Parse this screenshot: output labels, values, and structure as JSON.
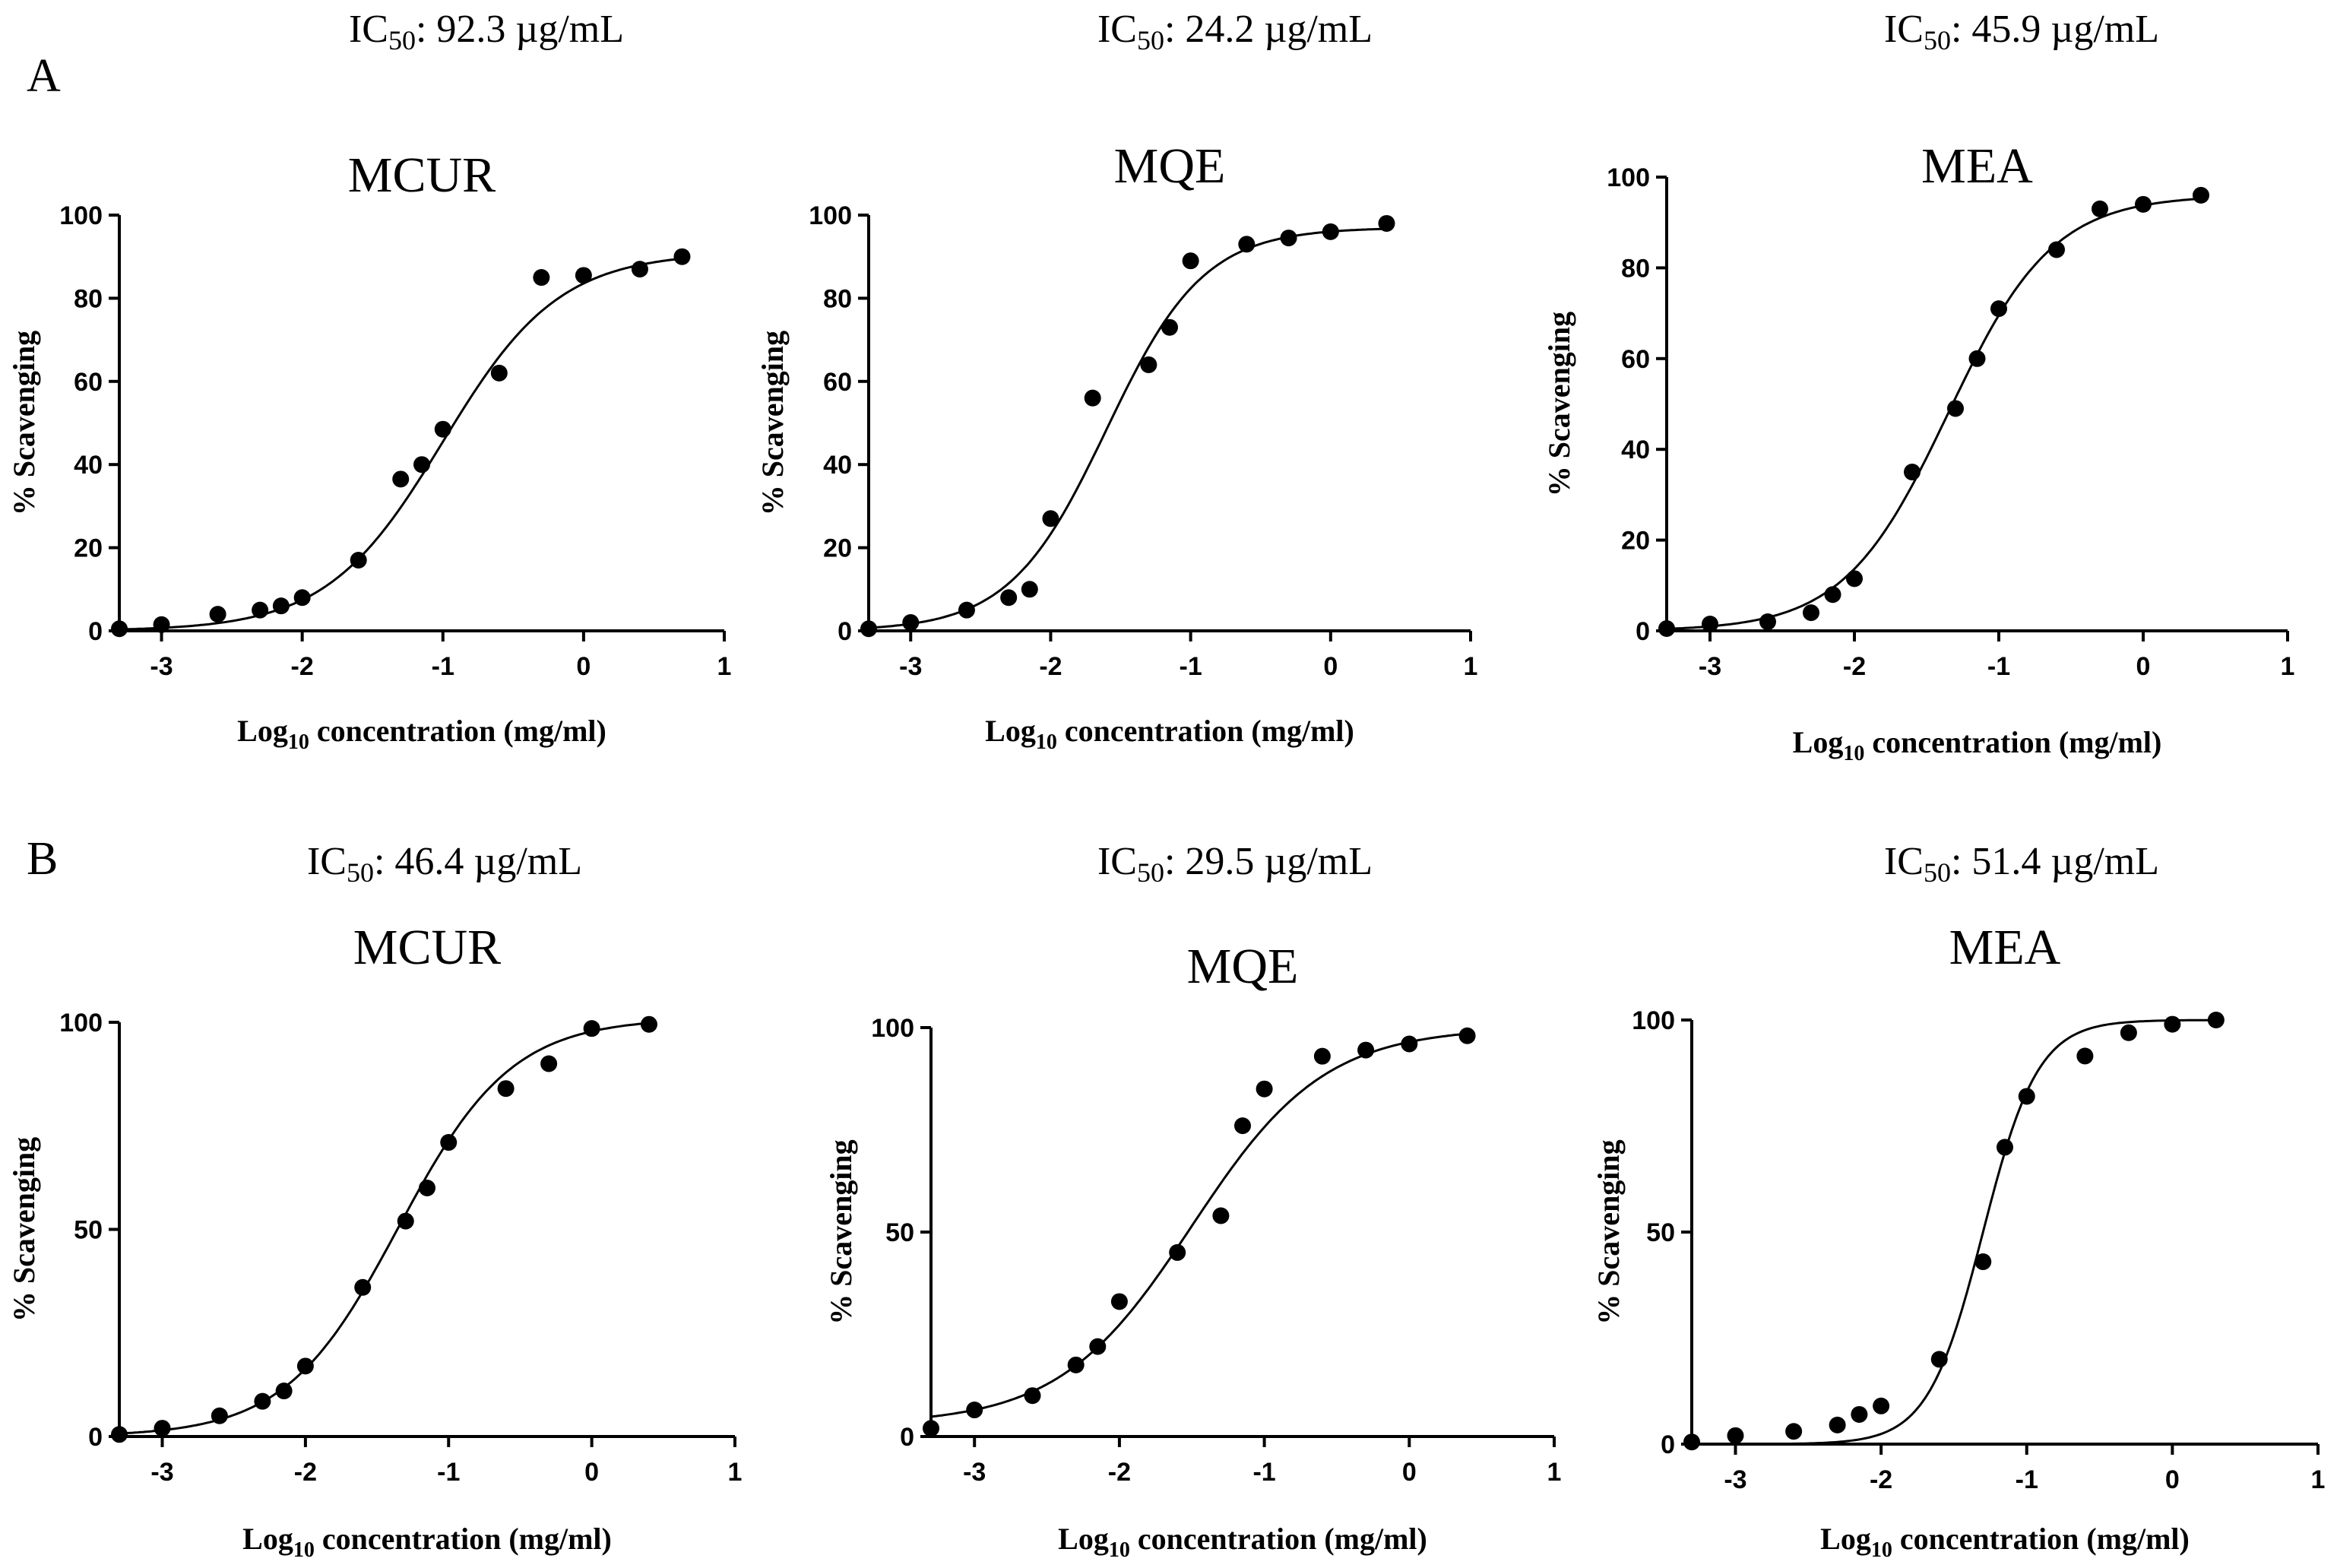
{
  "figure": {
    "panel_labels": [
      "A",
      "B"
    ]
  },
  "chart_data": [
    {
      "type": "scatter",
      "panel": "A",
      "title": "MCUR",
      "ic50_label": "IC",
      "ic50_sub": "50",
      "ic50_value": ": 92.3 µg/mL",
      "xlabel_main": "Log",
      "xlabel_sub": "10",
      "xlabel_rest": " concentration (mg/ml)",
      "ylabel": "% Scavenging",
      "xlim": [
        -3.3,
        1
      ],
      "ylim": [
        0,
        100
      ],
      "xticks": [
        -3,
        -2,
        -1,
        0,
        1
      ],
      "yticks": [
        0,
        20,
        40,
        60,
        80,
        100
      ],
      "x": [
        -3.3,
        -3.0,
        -2.6,
        -2.3,
        -2.15,
        -2.0,
        -1.6,
        -1.3,
        -1.15,
        -1.0,
        -0.6,
        -0.3,
        0.0,
        0.4,
        0.7
      ],
      "y": [
        0.5,
        1.5,
        4,
        5,
        6,
        8,
        17,
        36.5,
        40,
        48.5,
        62,
        85,
        85.5,
        87,
        90
      ],
      "fit": {
        "bottom": 0,
        "top": 91,
        "logIC50": -1.0,
        "hill": 1.05
      }
    },
    {
      "type": "scatter",
      "panel": "A",
      "title": "MQE",
      "ic50_label": "IC",
      "ic50_sub": "50",
      "ic50_value": ": 24.2 µg/mL",
      "xlabel_main": "Log",
      "xlabel_sub": "10",
      "xlabel_rest": " concentration (mg/ml)",
      "ylabel": "% Scavenging",
      "xlim": [
        -3.3,
        1
      ],
      "ylim": [
        0,
        100
      ],
      "xticks": [
        -3,
        -2,
        -1,
        0,
        1
      ],
      "yticks": [
        0,
        20,
        40,
        60,
        80,
        100
      ],
      "x": [
        -3.3,
        -3.0,
        -2.6,
        -2.3,
        -2.15,
        -2.0,
        -1.7,
        -1.3,
        -1.15,
        -1.0,
        -0.6,
        -0.3,
        0.0,
        0.4
      ],
      "y": [
        0.5,
        2,
        5,
        8,
        10,
        27,
        56,
        64,
        73,
        89,
        93,
        94.5,
        96,
        98
      ],
      "fit": {
        "bottom": 0,
        "top": 97,
        "logIC50": -1.6,
        "hill": 1.25
      }
    },
    {
      "type": "scatter",
      "panel": "A",
      "title": "MEA",
      "ic50_label": "IC",
      "ic50_sub": "50",
      "ic50_value": ": 45.9 µg/mL",
      "xlabel_main": "Log",
      "xlabel_sub": "10",
      "xlabel_rest": " concentration (mg/ml)",
      "ylabel": "% Scavenging",
      "xlim": [
        -3.3,
        1
      ],
      "ylim": [
        0,
        100
      ],
      "xticks": [
        -3,
        -2,
        -1,
        0,
        1
      ],
      "yticks": [
        0,
        20,
        40,
        60,
        80,
        100
      ],
      "x": [
        -3.3,
        -3.0,
        -2.6,
        -2.3,
        -2.15,
        -2.0,
        -1.6,
        -1.3,
        -1.15,
        -1.0,
        -0.6,
        -0.3,
        0.0,
        0.4
      ],
      "y": [
        0.5,
        1.5,
        2,
        4,
        8,
        11.5,
        35,
        49,
        60,
        71,
        84,
        93,
        94,
        96
      ],
      "fit": {
        "bottom": 0,
        "top": 96,
        "logIC50": -1.35,
        "hill": 1.2
      }
    },
    {
      "type": "scatter",
      "panel": "B",
      "title": "MCUR",
      "ic50_label": "IC",
      "ic50_sub": "50",
      "ic50_value": ": 46.4 µg/mL",
      "xlabel_main": "Log",
      "xlabel_sub": "10",
      "xlabel_rest": " concentration (mg/ml)",
      "ylabel": "% Scavenging",
      "xlim": [
        -3.3,
        1
      ],
      "ylim": [
        0,
        100
      ],
      "xticks": [
        -3,
        -2,
        -1,
        0,
        1
      ],
      "yticks": [
        0,
        50,
        100
      ],
      "x": [
        -3.3,
        -3.0,
        -2.6,
        -2.3,
        -2.15,
        -2.0,
        -1.6,
        -1.3,
        -1.15,
        -1.0,
        -0.6,
        -0.3,
        0.0,
        0.4
      ],
      "y": [
        0.5,
        2,
        5,
        8.5,
        11,
        17,
        36,
        52,
        60,
        71,
        84,
        90,
        98.5,
        99.5
      ],
      "fit": {
        "bottom": 0,
        "top": 101,
        "logIC50": -1.35,
        "hill": 1.1
      }
    },
    {
      "type": "scatter",
      "panel": "B",
      "title": "MQE",
      "ic50_label": "IC",
      "ic50_sub": "50",
      "ic50_value": ": 29.5 µg/mL",
      "xlabel_main": "Log",
      "xlabel_sub": "10",
      "xlabel_rest": " concentration (mg/ml)",
      "ylabel": "% Scavenging",
      "xlim": [
        -3.3,
        1
      ],
      "ylim": [
        0,
        100
      ],
      "xticks": [
        -3,
        -2,
        -1,
        0,
        1
      ],
      "yticks": [
        0,
        50,
        100
      ],
      "x": [
        -3.3,
        -3.0,
        -2.6,
        -2.3,
        -2.15,
        -2.0,
        -1.6,
        -1.3,
        -1.15,
        -1.0,
        -0.6,
        -0.3,
        0.0,
        0.4
      ],
      "y": [
        2,
        6.5,
        10,
        17.5,
        22,
        33,
        45,
        54,
        76,
        85,
        93,
        94.5,
        96,
        98
      ],
      "fit": {
        "bottom": 3,
        "top": 100,
        "logIC50": -1.5,
        "hill": 0.95
      }
    },
    {
      "type": "scatter",
      "panel": "B",
      "title": "MEA",
      "ic50_label": "IC",
      "ic50_sub": "50",
      "ic50_value": ": 51.4 µg/mL",
      "xlabel_main": "Log",
      "xlabel_sub": "10",
      "xlabel_rest": " concentration (mg/ml)",
      "ylabel": "% Scavenging",
      "xlim": [
        -3.3,
        1
      ],
      "ylim": [
        0,
        100
      ],
      "xticks": [
        -3,
        -2,
        -1,
        0,
        1
      ],
      "yticks": [
        0,
        50,
        100
      ],
      "x": [
        -3.3,
        -3.0,
        -2.6,
        -2.3,
        -2.15,
        -2.0,
        -1.6,
        -1.3,
        -1.15,
        -1.0,
        -0.6,
        -0.3,
        0.0,
        0.3
      ],
      "y": [
        0.5,
        2,
        3,
        4.5,
        7,
        9,
        20,
        43,
        70,
        82,
        91.5,
        97,
        99,
        100
      ],
      "fit": {
        "bottom": 0,
        "top": 100,
        "logIC50": -1.3,
        "hill": 2.3
      }
    }
  ]
}
